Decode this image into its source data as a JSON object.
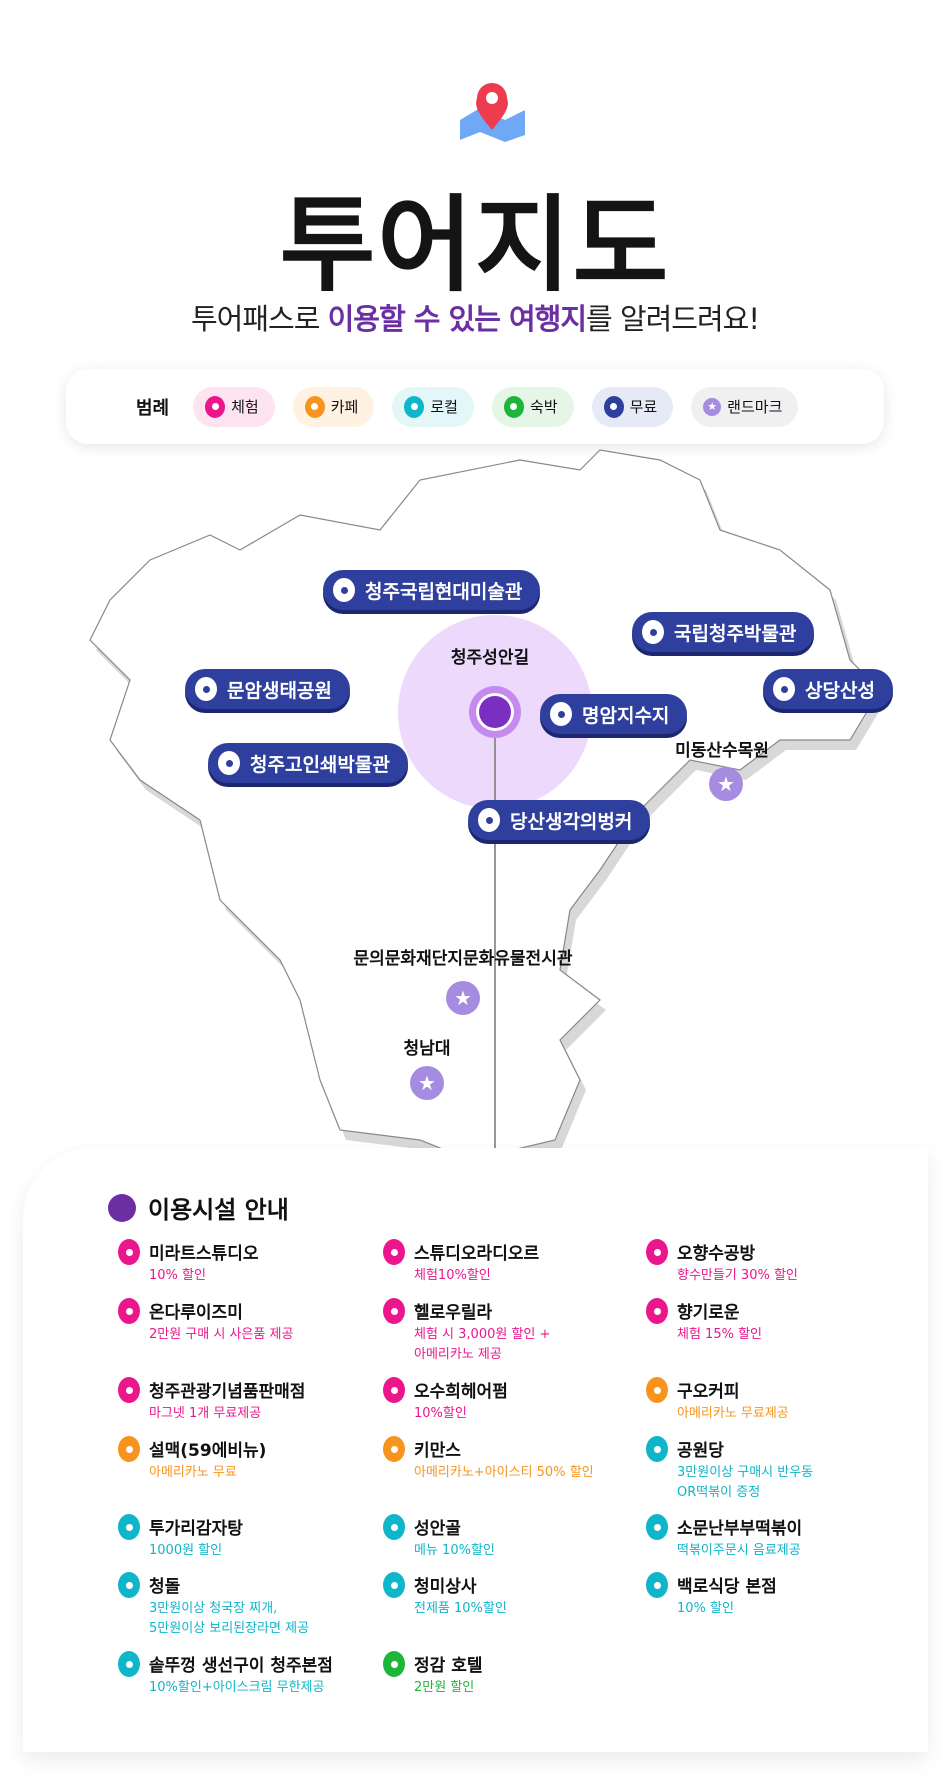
{
  "header": {
    "title": "투어지도",
    "subtitle_pre": "투어패스로 ",
    "subtitle_hl": "이용할 수 있는 여행지",
    "subtitle_post": "를 알려드려요!"
  },
  "legend": {
    "label": "범례",
    "items": [
      {
        "label": "체험",
        "color": "#ec168c",
        "bg": "#fde4f0"
      },
      {
        "label": "카페",
        "color": "#f7941d",
        "bg": "#fff2e2"
      },
      {
        "label": "로컬",
        "color": "#0fb5c9",
        "bg": "#e3f6f8"
      },
      {
        "label": "숙박",
        "color": "#1db53a",
        "bg": "#e5f6e7"
      },
      {
        "label": "무료",
        "color": "#2e3f9e",
        "bg": "#e6e9f6"
      },
      {
        "label": "랜드마크",
        "color": "#a68ce0",
        "bg": "#f0f0f2",
        "icon": "star"
      }
    ]
  },
  "map": {
    "center": "청주성안길",
    "free_places": [
      "청주국립현대미술관",
      "국립청주박물관",
      "문암생태공원",
      "상당산성",
      "명암지수지",
      "청주고인쇄박물관",
      "당산생각의벙커"
    ],
    "landmarks": [
      "미동산수목원",
      "문의문화재단지문화유물전시관",
      "청남대"
    ]
  },
  "facilities": {
    "title": "이용시설 안내",
    "items": [
      {
        "name": "미라트스튜디오",
        "desc": "10% 할인",
        "color": "#ec168c"
      },
      {
        "name": "스튜디오라디오르",
        "desc": "체험10%할인",
        "color": "#ec168c"
      },
      {
        "name": "오향수공방",
        "desc": "향수만들기 30% 할인",
        "color": "#ec168c"
      },
      {
        "name": "온다루이즈미",
        "desc": "2만원 구매 시 사은품 제공",
        "color": "#ec168c"
      },
      {
        "name": "헬로우릴라",
        "desc": "체험 시 3,000원 할인 +\n아메리카노 제공",
        "color": "#ec168c"
      },
      {
        "name": "향기로운",
        "desc": "체험 15% 할인",
        "color": "#ec168c"
      },
      {
        "name": "청주관광기념품판매점",
        "desc": "마그넷 1개 무료제공",
        "color": "#ec168c"
      },
      {
        "name": "오수희헤어펌",
        "desc": "10%할인",
        "color": "#ec168c"
      },
      {
        "name": "구오커피",
        "desc": "아메리카노 무료제공",
        "color": "#f7941d"
      },
      {
        "name": "설맥(59에비뉴)",
        "desc": "아메리카노 무료",
        "color": "#f7941d"
      },
      {
        "name": "키만스",
        "desc": "아메리카노+아이스티 50% 할인",
        "color": "#f7941d"
      },
      {
        "name": "공원당",
        "desc": "3만원이상 구매시 반우동\nOR떡볶이 증정",
        "color": "#0fb5c9"
      },
      {
        "name": "투가리감자탕",
        "desc": "1000원 할인",
        "color": "#0fb5c9"
      },
      {
        "name": "성안골",
        "desc": "메뉴 10%할인",
        "color": "#0fb5c9"
      },
      {
        "name": "소문난부부떡볶이",
        "desc": "떡볶이주문시 음료제공",
        "color": "#0fb5c9"
      },
      {
        "name": "청돌",
        "desc": "3만원이상 청국장 찌개,\n5만원이상 보리된장라면 제공",
        "color": "#0fb5c9"
      },
      {
        "name": "청미상사",
        "desc": "전제품 10%할인",
        "color": "#0fb5c9"
      },
      {
        "name": "백로식당 본점",
        "desc": "10% 할인",
        "color": "#0fb5c9"
      },
      {
        "name": "솥뚜껑 생선구이 청주본점",
        "desc": "10%할인+아이스크림 무한제공",
        "color": "#0fb5c9"
      },
      {
        "name": "정감 호텔",
        "desc": "2만원 할인",
        "color": "#1db53a"
      }
    ]
  }
}
